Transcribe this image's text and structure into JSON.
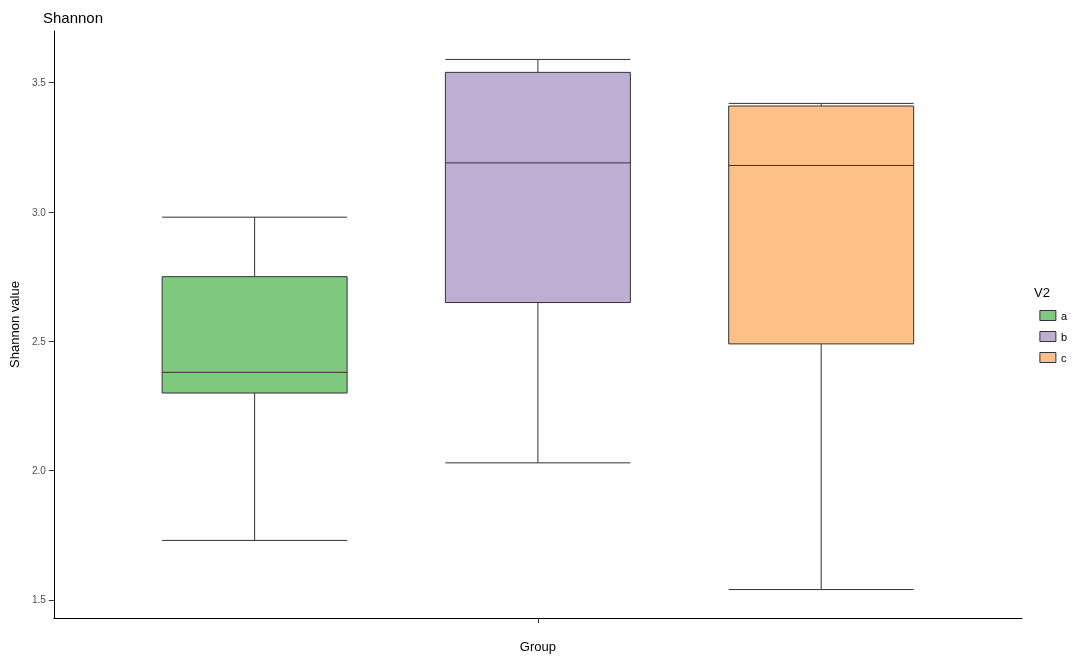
{
  "chart_data": {
    "type": "box",
    "title": "Shannon",
    "xlabel": "Group",
    "ylabel": "Shannon value",
    "legend_title": "V2",
    "categories": [
      null
    ],
    "series": [
      {
        "name": "a",
        "color": "#7fc97f",
        "boxes": [
          {
            "low": 1.73,
            "q1": 2.3,
            "median": 2.38,
            "q3": 2.75,
            "high": 2.98
          }
        ]
      },
      {
        "name": "b",
        "color": "#beaed4",
        "boxes": [
          {
            "low": 2.03,
            "q1": 2.65,
            "median": 3.19,
            "q3": 3.54,
            "high": 3.59
          }
        ]
      },
      {
        "name": "c",
        "color": "#fdc086",
        "boxes": [
          {
            "low": 1.54,
            "q1": 2.49,
            "median": 3.18,
            "q3": 3.41,
            "high": 3.42
          }
        ]
      }
    ],
    "ylim": [
      1.43,
      3.7
    ],
    "yticks": [
      1.5,
      {
        "value": 2,
        "label": "2.0"
      },
      2.5,
      {
        "value": 3,
        "label": "3.0"
      },
      3.5
    ],
    "grid": false,
    "legend": "right"
  }
}
